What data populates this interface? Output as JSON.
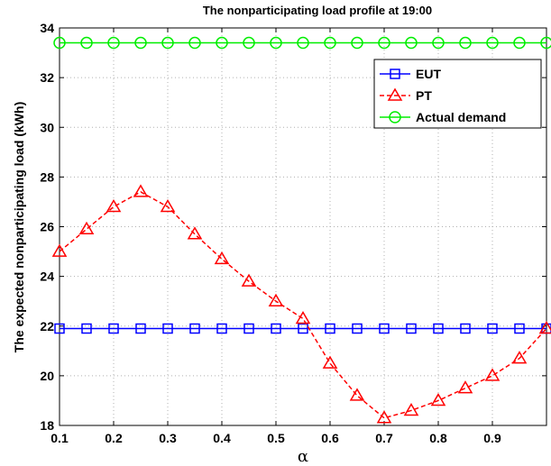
{
  "chart_data": {
    "type": "line",
    "title": "The nonparticipating load profile at 19:00",
    "xlabel": "α",
    "ylabel": "The expected nonparticipating load (kWh)",
    "xlim": [
      0.1,
      1.0
    ],
    "ylim": [
      18,
      34
    ],
    "xticks": [
      0.1,
      0.2,
      0.3,
      0.4,
      0.5,
      0.6,
      0.7,
      0.8,
      0.9
    ],
    "xtick_labels": [
      "0.1",
      "0.2",
      "0.3",
      "0.4",
      "0.5",
      "0.6",
      "0.7",
      "0.8",
      "0.9"
    ],
    "yticks": [
      18,
      20,
      22,
      24,
      26,
      28,
      30,
      32,
      34
    ],
    "ytick_labels": [
      "18",
      "20",
      "22",
      "24",
      "26",
      "28",
      "30",
      "32",
      "34"
    ],
    "grid": true,
    "legend_position": "top-right",
    "x": [
      0.1,
      0.15,
      0.2,
      0.25,
      0.3,
      0.35,
      0.4,
      0.45,
      0.5,
      0.55,
      0.6,
      0.65,
      0.7,
      0.75,
      0.8,
      0.85,
      0.9,
      0.95,
      1.0
    ],
    "series": [
      {
        "name": "EUT",
        "color": "#0000ff",
        "line_style": "solid",
        "marker": "square",
        "values": [
          21.9,
          21.9,
          21.9,
          21.9,
          21.9,
          21.9,
          21.9,
          21.9,
          21.9,
          21.9,
          21.9,
          21.9,
          21.9,
          21.9,
          21.9,
          21.9,
          21.9,
          21.9,
          21.9
        ]
      },
      {
        "name": "PT",
        "color": "#ff0000",
        "line_style": "dashed",
        "marker": "triangle",
        "values": [
          25.0,
          25.9,
          26.8,
          27.4,
          26.8,
          25.7,
          24.7,
          23.8,
          23.0,
          22.3,
          20.5,
          19.2,
          18.3,
          18.6,
          19.0,
          19.5,
          20.0,
          20.7,
          21.9
        ]
      },
      {
        "name": "Actual demand",
        "color": "#00ee00",
        "line_style": "solid",
        "marker": "circle",
        "values": [
          33.4,
          33.4,
          33.4,
          33.4,
          33.4,
          33.4,
          33.4,
          33.4,
          33.4,
          33.4,
          33.4,
          33.4,
          33.4,
          33.4,
          33.4,
          33.4,
          33.4,
          33.4,
          33.4
        ]
      }
    ]
  }
}
